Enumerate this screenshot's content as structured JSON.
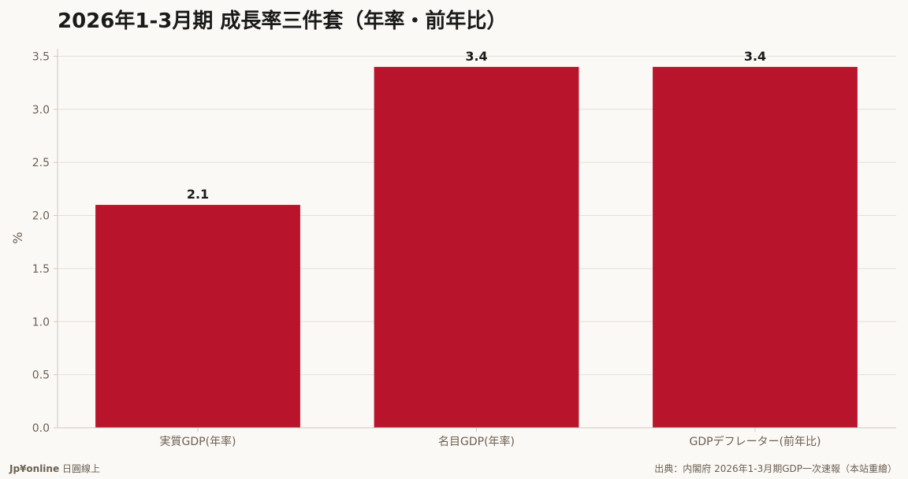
{
  "chart_data": {
    "type": "bar",
    "title": "2026年1-3月期 成長率三件套（年率・前年比）",
    "ylabel": "%",
    "xlabel": "",
    "categories": [
      "実質GDP(年率)",
      "名目GDP(年率)",
      "GDPデフレーター(前年比)"
    ],
    "values": [
      2.1,
      3.4,
      3.4
    ],
    "data_labels": [
      "2.1",
      "3.4",
      "3.4"
    ],
    "yticks": [
      "0.0",
      "0.5",
      "1.0",
      "1.5",
      "2.0",
      "2.5",
      "3.0",
      "3.5"
    ],
    "ylim": [
      0,
      3.57
    ],
    "grid": true,
    "colors": {
      "bar": "#b8152d",
      "grid": "#e4e0d8",
      "axis": "#cfc9bf",
      "tick_text": "#6b5f52",
      "label_text": "#1a1a1a"
    }
  },
  "footer": {
    "brand": "Jp¥online",
    "brand_suffix": "日圓線上",
    "source": "出典：内閣府 2026年1-3月期GDP一次速報（本站重繪）"
  }
}
